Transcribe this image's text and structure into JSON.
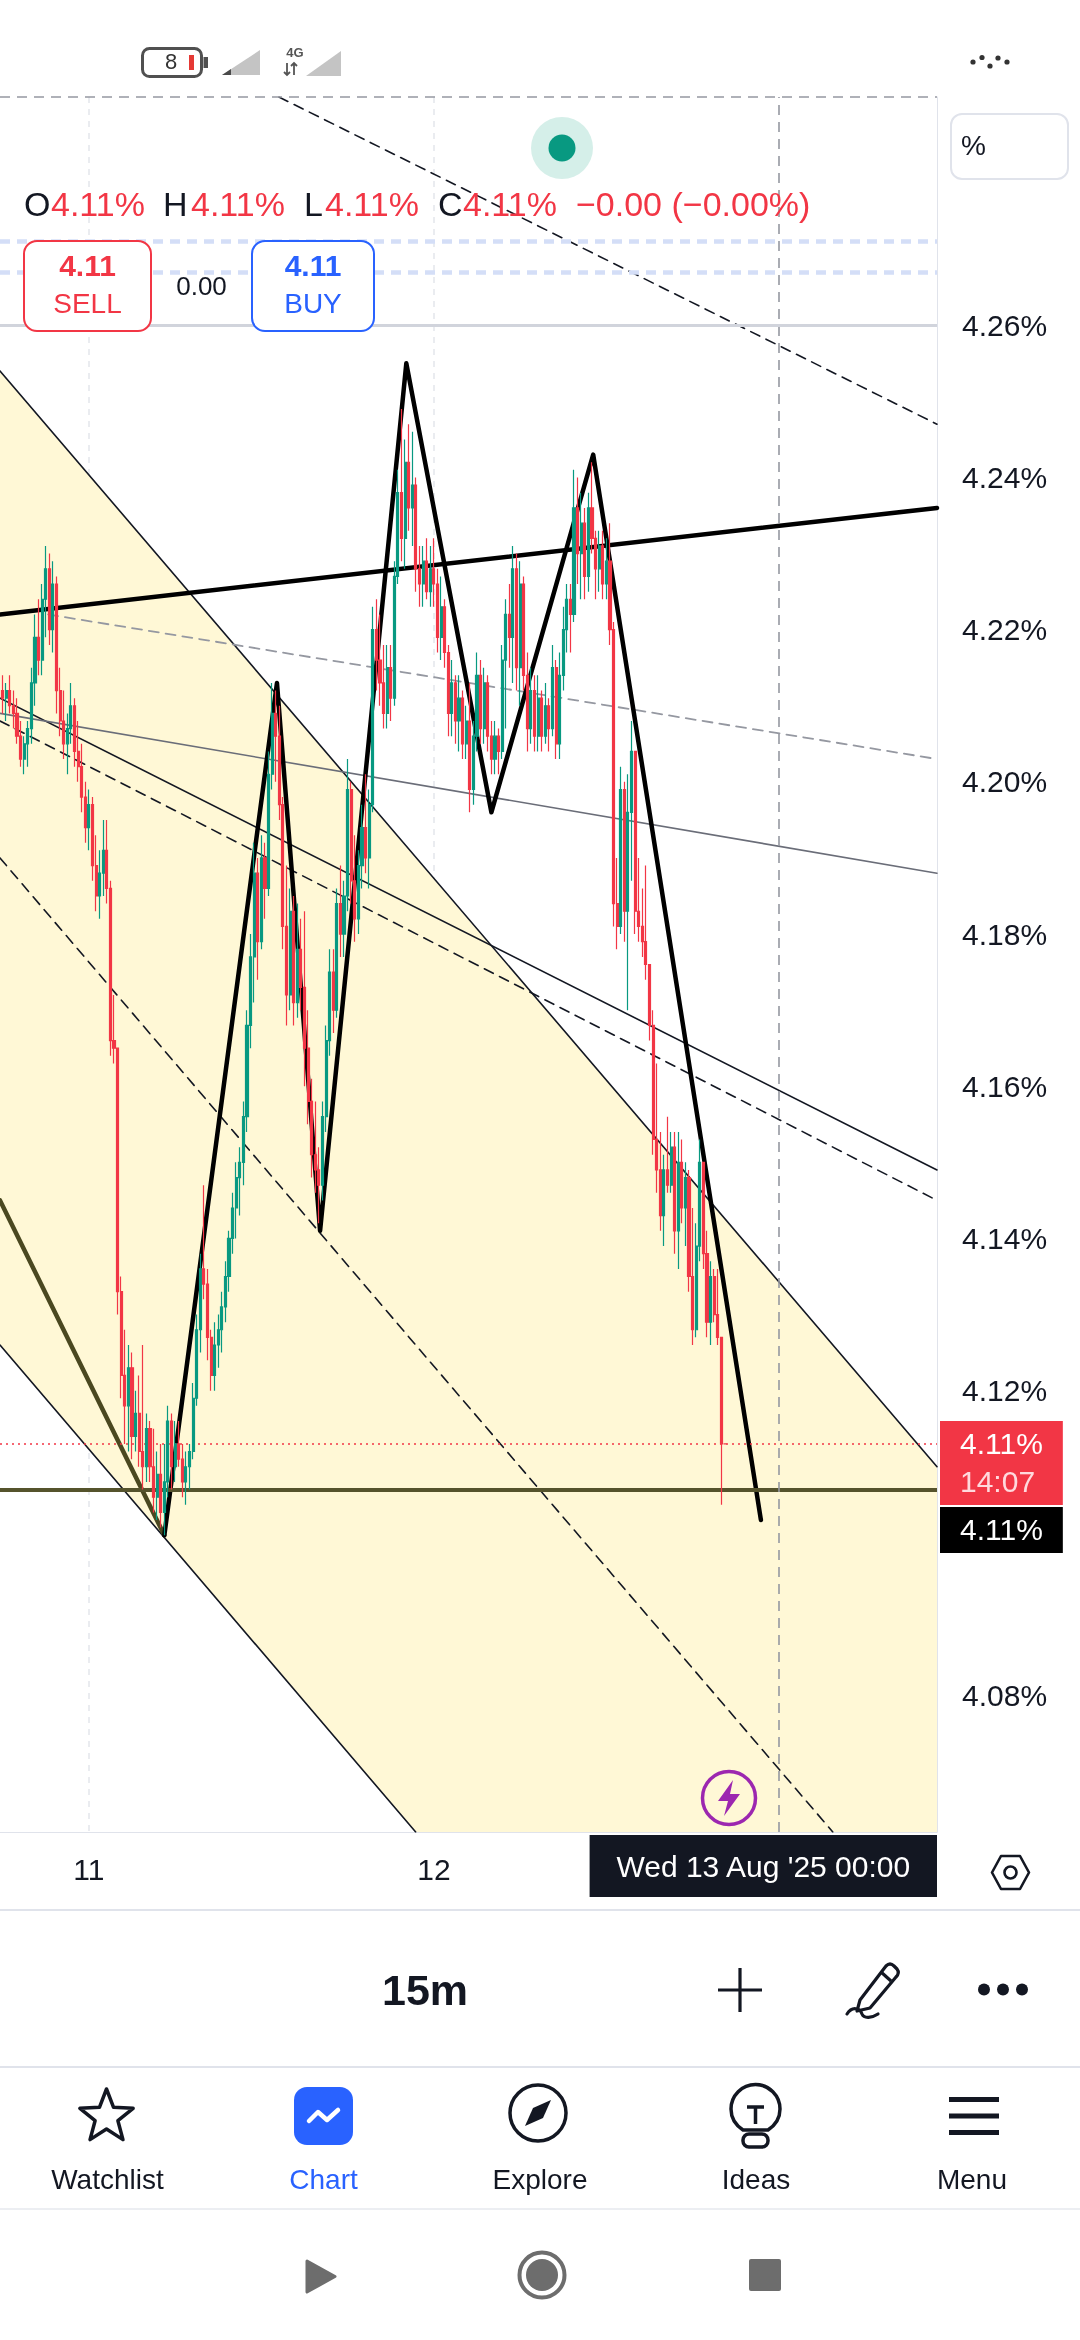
{
  "chart_data": {
    "type": "candlestick",
    "xlim": [
      "2025-08-10T17:49",
      "2025-08-13T11:00"
    ],
    "ylim": [
      4.062,
      4.29
    ],
    "xticks": [
      {
        "value": "2025-08-11",
        "label": "11"
      },
      {
        "value": "2025-08-12",
        "label": "12"
      }
    ],
    "yticks": [
      {
        "value": 4.08,
        "label": "4.08%"
      },
      {
        "value": 4.12,
        "label": "4.12%"
      },
      {
        "value": 4.14,
        "label": "4.14%"
      },
      {
        "value": 4.16,
        "label": "4.16%"
      },
      {
        "value": 4.18,
        "label": "4.18%"
      },
      {
        "value": 4.2,
        "label": "4.20%"
      },
      {
        "value": 4.22,
        "label": "4.22%"
      },
      {
        "value": 4.24,
        "label": "4.24%"
      },
      {
        "value": 4.26,
        "label": "4.26%"
      }
    ],
    "grid": "x",
    "series": [
      {
        "type": "candlestick",
        "x": [
          "2025-08-10T18:00",
          "2025-08-10T18:15",
          "2025-08-10T18:30",
          "2025-08-10T18:45",
          "2025-08-10T19:00",
          "2025-08-10T19:15",
          "2025-08-10T19:30",
          "2025-08-10T19:45",
          "2025-08-10T20:00",
          "2025-08-10T20:15",
          "2025-08-10T20:30",
          "2025-08-10T20:45",
          "2025-08-10T21:00",
          "2025-08-10T21:15",
          "2025-08-10T21:30",
          "2025-08-10T21:45",
          "2025-08-10T22:00",
          "2025-08-10T22:15",
          "2025-08-10T22:30",
          "2025-08-10T22:45",
          "2025-08-10T23:00",
          "2025-08-10T23:15",
          "2025-08-10T23:30",
          "2025-08-10T23:45",
          "2025-08-11T00:00",
          "2025-08-11T00:15",
          "2025-08-11T00:30",
          "2025-08-11T00:45",
          "2025-08-11T01:00",
          "2025-08-11T01:15",
          "2025-08-11T01:30",
          "2025-08-11T01:45",
          "2025-08-11T02:00",
          "2025-08-11T02:15",
          "2025-08-11T02:30",
          "2025-08-11T02:45",
          "2025-08-11T03:00",
          "2025-08-11T03:15",
          "2025-08-11T03:30",
          "2025-08-11T03:45",
          "2025-08-11T04:00",
          "2025-08-11T04:15",
          "2025-08-11T04:30",
          "2025-08-11T04:45",
          "2025-08-11T05:00",
          "2025-08-11T05:15",
          "2025-08-11T05:30",
          "2025-08-11T05:45",
          "2025-08-11T06:00",
          "2025-08-11T06:15",
          "2025-08-11T06:30",
          "2025-08-11T06:45",
          "2025-08-11T07:00",
          "2025-08-11T07:15",
          "2025-08-11T07:30",
          "2025-08-11T07:45",
          "2025-08-11T08:00",
          "2025-08-11T08:15",
          "2025-08-11T08:30",
          "2025-08-11T08:45",
          "2025-08-11T09:00",
          "2025-08-11T09:15",
          "2025-08-11T09:30",
          "2025-08-11T09:45",
          "2025-08-11T10:00",
          "2025-08-11T10:15",
          "2025-08-11T10:30",
          "2025-08-11T10:45",
          "2025-08-11T11:00",
          "2025-08-11T11:15",
          "2025-08-11T11:30",
          "2025-08-11T11:45",
          "2025-08-11T12:00",
          "2025-08-11T12:15",
          "2025-08-11T12:30",
          "2025-08-11T12:45",
          "2025-08-11T13:00",
          "2025-08-11T13:15",
          "2025-08-11T13:30",
          "2025-08-11T13:45",
          "2025-08-11T14:00",
          "2025-08-11T14:15",
          "2025-08-11T14:30",
          "2025-08-11T14:45",
          "2025-08-11T15:00",
          "2025-08-11T15:15",
          "2025-08-11T15:30",
          "2025-08-11T15:45",
          "2025-08-11T16:00",
          "2025-08-11T16:15",
          "2025-08-11T16:30",
          "2025-08-11T16:45",
          "2025-08-11T17:00",
          "2025-08-11T17:15",
          "2025-08-11T17:30",
          "2025-08-11T17:45",
          "2025-08-11T18:00",
          "2025-08-11T18:15",
          "2025-08-11T18:30",
          "2025-08-11T18:45",
          "2025-08-11T19:00",
          "2025-08-11T19:15",
          "2025-08-11T19:30",
          "2025-08-11T19:45",
          "2025-08-11T20:00",
          "2025-08-11T20:15",
          "2025-08-11T20:30",
          "2025-08-11T20:45",
          "2025-08-11T21:00",
          "2025-08-11T21:15",
          "2025-08-11T21:30",
          "2025-08-11T21:45",
          "2025-08-11T22:00",
          "2025-08-11T22:15",
          "2025-08-11T22:30",
          "2025-08-11T22:45",
          "2025-08-11T23:00",
          "2025-08-11T23:15",
          "2025-08-11T23:30",
          "2025-08-11T23:45",
          "2025-08-12T00:00",
          "2025-08-12T00:15",
          "2025-08-12T00:30",
          "2025-08-12T00:45",
          "2025-08-12T01:00",
          "2025-08-12T01:15",
          "2025-08-12T01:30",
          "2025-08-12T01:45",
          "2025-08-12T02:00",
          "2025-08-12T02:15",
          "2025-08-12T02:30",
          "2025-08-12T02:45",
          "2025-08-12T03:00",
          "2025-08-12T03:15",
          "2025-08-12T03:30",
          "2025-08-12T03:45",
          "2025-08-12T04:00",
          "2025-08-12T04:15",
          "2025-08-12T04:30",
          "2025-08-12T04:45",
          "2025-08-12T05:00",
          "2025-08-12T05:15",
          "2025-08-12T05:30",
          "2025-08-12T05:45",
          "2025-08-12T06:00",
          "2025-08-12T06:15",
          "2025-08-12T06:30",
          "2025-08-12T06:45",
          "2025-08-12T07:00",
          "2025-08-12T07:15",
          "2025-08-12T07:30",
          "2025-08-12T07:45",
          "2025-08-12T08:00",
          "2025-08-12T08:15",
          "2025-08-12T08:30",
          "2025-08-12T08:45",
          "2025-08-12T09:00",
          "2025-08-12T09:15",
          "2025-08-12T09:30",
          "2025-08-12T09:45",
          "2025-08-12T10:00",
          "2025-08-12T10:15",
          "2025-08-12T10:30",
          "2025-08-12T10:45",
          "2025-08-12T11:00",
          "2025-08-12T11:15",
          "2025-08-12T11:30",
          "2025-08-12T11:45",
          "2025-08-12T12:00",
          "2025-08-12T12:15",
          "2025-08-12T12:30",
          "2025-08-12T12:45",
          "2025-08-12T13:00",
          "2025-08-12T13:15",
          "2025-08-12T13:30",
          "2025-08-12T13:45",
          "2025-08-12T14:00",
          "2025-08-12T14:15",
          "2025-08-12T14:30",
          "2025-08-12T14:45",
          "2025-08-12T15:00",
          "2025-08-12T15:15",
          "2025-08-12T15:30",
          "2025-08-12T15:45",
          "2025-08-12T16:00",
          "2025-08-12T16:15",
          "2025-08-12T16:30",
          "2025-08-12T16:45",
          "2025-08-12T17:00",
          "2025-08-12T17:15",
          "2025-08-12T17:30",
          "2025-08-12T17:45",
          "2025-08-12T18:00",
          "2025-08-12T18:15",
          "2025-08-12T18:30",
          "2025-08-12T18:45",
          "2025-08-12T19:00",
          "2025-08-12T19:15",
          "2025-08-12T19:30",
          "2025-08-12T19:45",
          "2025-08-12T20:00",
          "2025-08-12T20:15"
        ],
        "ohlc": [
          [
            4.212,
            4.214,
            4.209,
            4.211
          ],
          [
            4.211,
            4.213,
            4.208,
            4.212
          ],
          [
            4.212,
            4.214,
            4.209,
            4.21
          ],
          [
            4.21,
            4.212,
            4.207,
            4.209
          ],
          [
            4.209,
            4.211,
            4.205,
            4.206
          ],
          [
            4.206,
            4.208,
            4.202,
            4.203
          ],
          [
            4.203,
            4.206,
            4.201,
            4.205
          ],
          [
            4.205,
            4.208,
            4.202,
            4.207
          ],
          [
            4.207,
            4.215,
            4.205,
            4.213
          ],
          [
            4.213,
            4.222,
            4.21,
            4.219
          ],
          [
            4.219,
            4.224,
            4.214,
            4.216
          ],
          [
            4.216,
            4.226,
            4.214,
            4.224
          ],
          [
            4.224,
            4.231,
            4.219,
            4.228
          ],
          [
            4.228,
            4.23,
            4.218,
            4.22
          ],
          [
            4.22,
            4.229,
            4.217,
            4.226
          ],
          [
            4.226,
            4.227,
            4.209,
            4.212
          ],
          [
            4.212,
            4.215,
            4.206,
            4.208
          ],
          [
            4.208,
            4.212,
            4.203,
            4.205
          ],
          [
            4.205,
            4.209,
            4.201,
            4.207
          ],
          [
            4.207,
            4.213,
            4.205,
            4.21
          ],
          [
            4.21,
            4.211,
            4.202,
            4.204
          ],
          [
            4.204,
            4.208,
            4.2,
            4.202
          ],
          [
            4.202,
            4.205,
            4.196,
            4.198
          ],
          [
            4.198,
            4.2,
            4.192,
            4.194
          ],
          [
            4.194,
            4.199,
            4.191,
            4.197
          ],
          [
            4.197,
            4.198,
            4.187,
            4.189
          ],
          [
            4.189,
            4.193,
            4.183,
            4.185
          ],
          [
            4.185,
            4.191,
            4.182,
            4.188
          ],
          [
            4.188,
            4.195,
            4.185,
            4.191
          ],
          [
            4.191,
            4.195,
            4.184,
            4.186
          ],
          [
            4.186,
            4.187,
            4.164,
            4.166
          ],
          [
            4.166,
            4.172,
            4.163,
            4.165
          ],
          [
            4.165,
            4.165,
            4.13,
            4.133
          ],
          [
            4.133,
            4.135,
            4.119,
            4.122
          ],
          [
            4.122,
            4.128,
            4.113,
            4.118
          ],
          [
            4.118,
            4.126,
            4.112,
            4.123
          ],
          [
            4.123,
            4.125,
            4.111,
            4.114
          ],
          [
            4.114,
            4.12,
            4.112,
            4.117
          ],
          [
            4.117,
            4.122,
            4.11,
            4.112
          ],
          [
            4.112,
            4.126,
            4.107,
            4.11
          ],
          [
            4.11,
            4.117,
            4.108,
            4.115
          ],
          [
            4.115,
            4.116,
            4.108,
            4.11
          ],
          [
            4.11,
            4.115,
            4.104,
            4.106
          ],
          [
            4.106,
            4.112,
            4.103,
            4.109
          ],
          [
            4.109,
            4.113,
            4.102,
            4.104
          ],
          [
            4.104,
            4.113,
            4.101,
            4.108
          ],
          [
            4.108,
            4.118,
            4.106,
            4.116
          ],
          [
            4.116,
            4.117,
            4.107,
            4.11
          ],
          [
            4.11,
            4.116,
            4.108,
            4.113
          ],
          [
            4.113,
            4.116,
            4.11,
            4.111
          ],
          [
            4.111,
            4.113,
            4.106,
            4.108
          ],
          [
            4.108,
            4.112,
            4.105,
            4.11
          ],
          [
            4.11,
            4.113,
            4.107,
            4.112
          ],
          [
            4.112,
            4.121,
            4.111,
            4.119
          ],
          [
            4.119,
            4.13,
            4.118,
            4.128
          ],
          [
            4.128,
            4.138,
            4.125,
            4.136
          ],
          [
            4.136,
            4.147,
            4.132,
            4.134
          ],
          [
            4.134,
            4.136,
            4.124,
            4.127
          ],
          [
            4.127,
            4.128,
            4.12,
            4.122
          ],
          [
            4.122,
            4.129,
            4.12,
            4.126
          ],
          [
            4.126,
            4.13,
            4.123,
            4.128
          ],
          [
            4.128,
            4.133,
            4.125,
            4.131
          ],
          [
            4.131,
            4.137,
            4.129,
            4.135
          ],
          [
            4.135,
            4.141,
            4.133,
            4.14
          ],
          [
            4.14,
            4.146,
            4.138,
            4.144
          ],
          [
            4.144,
            4.15,
            4.14,
            4.148
          ],
          [
            4.148,
            4.152,
            4.143,
            4.15
          ],
          [
            4.15,
            4.158,
            4.147,
            4.156
          ],
          [
            4.156,
            4.17,
            4.154,
            4.168
          ],
          [
            4.168,
            4.18,
            4.165,
            4.177
          ],
          [
            4.177,
            4.192,
            4.171,
            4.188
          ],
          [
            4.188,
            4.19,
            4.174,
            4.179
          ],
          [
            4.179,
            4.193,
            4.178,
            4.19
          ],
          [
            4.19,
            4.192,
            4.182,
            4.186
          ],
          [
            4.186,
            4.204,
            4.185,
            4.201
          ],
          [
            4.201,
            4.213,
            4.199,
            4.209
          ],
          [
            4.209,
            4.212,
            4.2,
            4.206
          ],
          [
            4.206,
            4.21,
            4.195,
            4.197
          ],
          [
            4.197,
            4.198,
            4.178,
            4.181
          ],
          [
            4.181,
            4.189,
            4.168,
            4.172
          ],
          [
            4.172,
            4.186,
            4.17,
            4.183
          ],
          [
            4.183,
            4.185,
            4.168,
            4.171
          ],
          [
            4.171,
            4.184,
            4.169,
            4.178
          ],
          [
            4.178,
            4.182,
            4.17,
            4.173
          ],
          [
            4.173,
            4.183,
            4.16,
            4.165
          ],
          [
            4.165,
            4.17,
            4.155,
            4.158
          ],
          [
            4.158,
            4.161,
            4.148,
            4.151
          ],
          [
            4.151,
            4.158,
            4.146,
            4.149
          ],
          [
            4.149,
            4.152,
            4.142,
            4.147
          ],
          [
            4.147,
            4.158,
            4.145,
            4.156
          ],
          [
            4.156,
            4.168,
            4.154,
            4.166
          ],
          [
            4.166,
            4.178,
            4.164,
            4.175
          ],
          [
            4.175,
            4.178,
            4.167,
            4.17
          ],
          [
            4.17,
            4.186,
            4.169,
            4.184
          ],
          [
            4.184,
            4.189,
            4.177,
            4.18
          ],
          [
            4.18,
            4.187,
            4.177,
            4.185
          ],
          [
            4.185,
            4.203,
            4.183,
            4.199
          ],
          [
            4.199,
            4.2,
            4.184,
            4.187
          ],
          [
            4.187,
            4.193,
            4.179,
            4.182
          ],
          [
            4.182,
            4.191,
            4.18,
            4.189
          ],
          [
            4.189,
            4.197,
            4.186,
            4.194
          ],
          [
            4.194,
            4.201,
            4.188,
            4.19
          ],
          [
            4.19,
            4.199,
            4.186,
            4.197
          ],
          [
            4.197,
            4.223,
            4.196,
            4.22
          ],
          [
            4.22,
            4.224,
            4.212,
            4.216
          ],
          [
            4.216,
            4.222,
            4.21,
            4.213
          ],
          [
            4.213,
            4.218,
            4.207,
            4.209
          ],
          [
            4.209,
            4.218,
            4.207,
            4.215
          ],
          [
            4.215,
            4.218,
            4.208,
            4.211
          ],
          [
            4.211,
            4.229,
            4.21,
            4.227
          ],
          [
            4.227,
            4.241,
            4.226,
            4.238
          ],
          [
            4.238,
            4.249,
            4.229,
            4.232
          ],
          [
            4.232,
            4.245,
            4.228,
            4.242
          ],
          [
            4.242,
            4.247,
            4.233,
            4.236
          ],
          [
            4.236,
            4.246,
            4.231,
            4.239
          ],
          [
            4.239,
            4.24,
            4.225,
            4.228
          ],
          [
            4.228,
            4.231,
            4.223,
            4.226
          ],
          [
            4.226,
            4.231,
            4.223,
            4.229
          ],
          [
            4.229,
            4.232,
            4.224,
            4.225
          ],
          [
            4.225,
            4.231,
            4.223,
            4.228
          ],
          [
            4.228,
            4.232,
            4.223,
            4.226
          ],
          [
            4.226,
            4.228,
            4.217,
            4.219
          ],
          [
            4.219,
            4.227,
            4.216,
            4.223
          ],
          [
            4.223,
            4.224,
            4.215,
            4.217
          ],
          [
            4.217,
            4.218,
            4.206,
            4.209
          ],
          [
            4.209,
            4.216,
            4.206,
            4.213
          ],
          [
            4.213,
            4.214,
            4.205,
            4.208
          ],
          [
            4.208,
            4.214,
            4.204,
            4.211
          ],
          [
            4.211,
            4.212,
            4.203,
            4.205
          ],
          [
            4.205,
            4.21,
            4.203,
            4.208
          ],
          [
            4.208,
            4.213,
            4.196,
            4.199
          ],
          [
            4.199,
            4.208,
            4.197,
            4.206
          ],
          [
            4.206,
            4.217,
            4.204,
            4.214
          ],
          [
            4.214,
            4.216,
            4.205,
            4.207
          ],
          [
            4.207,
            4.215,
            4.205,
            4.213
          ],
          [
            4.213,
            4.214,
            4.204,
            4.206
          ],
          [
            4.206,
            4.208,
            4.201,
            4.203
          ],
          [
            4.203,
            4.208,
            4.201,
            4.206
          ],
          [
            4.206,
            4.207,
            4.201,
            4.204
          ],
          [
            4.204,
            4.218,
            4.203,
            4.216
          ],
          [
            4.216,
            4.224,
            4.207,
            4.222
          ],
          [
            4.222,
            4.226,
            4.215,
            4.219
          ],
          [
            4.219,
            4.231,
            4.213,
            4.228
          ],
          [
            4.228,
            4.23,
            4.212,
            4.215
          ],
          [
            4.215,
            4.229,
            4.21,
            4.226
          ],
          [
            4.226,
            4.227,
            4.212,
            4.214
          ],
          [
            4.214,
            4.217,
            4.204,
            4.207
          ],
          [
            4.207,
            4.215,
            4.205,
            4.212
          ],
          [
            4.212,
            4.214,
            4.204,
            4.206
          ],
          [
            4.206,
            4.214,
            4.204,
            4.211
          ],
          [
            4.211,
            4.212,
            4.204,
            4.206
          ],
          [
            4.206,
            4.213,
            4.205,
            4.21
          ],
          [
            4.21,
            4.211,
            4.204,
            4.207
          ],
          [
            4.207,
            4.218,
            4.206,
            4.215
          ],
          [
            4.215,
            4.216,
            4.203,
            4.205
          ],
          [
            4.205,
            4.217,
            4.203,
            4.214
          ],
          [
            4.214,
            4.223,
            4.212,
            4.22
          ],
          [
            4.22,
            4.226,
            4.217,
            4.224
          ],
          [
            4.224,
            4.226,
            4.217,
            4.222
          ],
          [
            4.222,
            4.241,
            4.221,
            4.236
          ],
          [
            4.236,
            4.24,
            4.226,
            4.23
          ],
          [
            4.23,
            4.238,
            4.224,
            4.234
          ],
          [
            4.234,
            4.236,
            4.224,
            4.227
          ],
          [
            4.227,
            4.238,
            4.225,
            4.236
          ],
          [
            4.236,
            4.242,
            4.23,
            4.232
          ],
          [
            4.232,
            4.233,
            4.224,
            4.228
          ],
          [
            4.228,
            4.233,
            4.225,
            4.231
          ],
          [
            4.231,
            4.233,
            4.224,
            4.226
          ],
          [
            4.226,
            4.232,
            4.224,
            4.229
          ],
          [
            4.229,
            4.234,
            4.218,
            4.22
          ],
          [
            4.22,
            4.221,
            4.181,
            4.184
          ],
          [
            4.184,
            4.19,
            4.178,
            4.181
          ],
          [
            4.181,
            4.202,
            4.18,
            4.199
          ],
          [
            4.199,
            4.2,
            4.179,
            4.183
          ],
          [
            4.183,
            4.201,
            4.17,
            4.196
          ],
          [
            4.196,
            4.208,
            4.187,
            4.204
          ],
          [
            4.204,
            4.204,
            4.18,
            4.183
          ],
          [
            4.183,
            4.19,
            4.179,
            4.181
          ],
          [
            4.181,
            4.186,
            4.177,
            4.179
          ],
          [
            4.179,
            4.189,
            4.174,
            4.176
          ],
          [
            4.176,
            4.176,
            4.166,
            4.168
          ],
          [
            4.168,
            4.17,
            4.151,
            4.153
          ],
          [
            4.153,
            4.163,
            4.146,
            4.149
          ],
          [
            4.149,
            4.154,
            4.141,
            4.143
          ],
          [
            4.143,
            4.151,
            4.139,
            4.149
          ],
          [
            4.149,
            4.156,
            4.146,
            4.147
          ],
          [
            4.147,
            4.154,
            4.146,
            4.152
          ],
          [
            4.152,
            4.154,
            4.138,
            4.141
          ],
          [
            4.141,
            4.154,
            4.136,
            4.15
          ],
          [
            4.15,
            4.153,
            4.142,
            4.144
          ],
          [
            4.144,
            4.15,
            4.139,
            4.148
          ],
          [
            4.148,
            4.149,
            4.133,
            4.135
          ],
          [
            4.135,
            4.144,
            4.126,
            4.128
          ],
          [
            4.128,
            4.142,
            4.127,
            4.139
          ],
          [
            4.139,
            4.153,
            4.137,
            4.15
          ],
          [
            4.15,
            4.15,
            4.136,
            4.138
          ],
          [
            4.138,
            4.141,
            4.127,
            4.129
          ],
          [
            4.129,
            4.137,
            4.126,
            4.135
          ],
          [
            4.135,
            4.136,
            4.129,
            4.13
          ],
          [
            4.13,
            4.136,
            4.126,
            4.127
          ],
          [
            4.127,
            4.127,
            4.105,
            4.113
          ],
          [
            4.113,
            4.113,
            4.113,
            4.113
          ]
        ],
        "colors": [
          "#f23645",
          "#089981",
          "#f23645",
          "#f23645",
          "#f23645",
          "#f23645",
          "#089981",
          "#089981",
          "#089981",
          "#089981",
          "#f23645",
          "#089981",
          "#089981",
          "#f23645",
          "#089981",
          "#f23645",
          "#f23645",
          "#f23645",
          "#089981",
          "#089981",
          "#f23645",
          "#f23645",
          "#f23645",
          "#f23645",
          "#089981",
          "#f23645",
          "#f23645",
          "#089981",
          "#089981",
          "#f23645",
          "#f23645",
          "#f23645",
          "#f23645",
          "#f23645",
          "#f23645",
          "#089981",
          "#f23645",
          "#089981",
          "#f23645",
          "#f23645",
          "#089981",
          "#f23645",
          "#f23645",
          "#089981",
          "#f23645",
          "#089981",
          "#089981",
          "#f23645",
          "#089981",
          "#f23645",
          "#f23645",
          "#089981",
          "#089981",
          "#089981",
          "#089981",
          "#089981",
          "#f23645",
          "#f23645",
          "#f23645",
          "#089981",
          "#089981",
          "#089981",
          "#089981",
          "#089981",
          "#089981",
          "#089981",
          "#089981",
          "#089981",
          "#089981",
          "#089981",
          "#089981",
          "#f23645",
          "#089981",
          "#f23645",
          "#089981",
          "#089981",
          "#f23645",
          "#f23645",
          "#f23645",
          "#f23645",
          "#089981",
          "#f23645",
          "#089981",
          "#f23645",
          "#f23645",
          "#f23645",
          "#f23645",
          "#f23645",
          "#f23645",
          "#089981",
          "#089981",
          "#089981",
          "#f23645",
          "#089981",
          "#f23645",
          "#089981",
          "#089981",
          "#f23645",
          "#f23645",
          "#089981",
          "#089981",
          "#f23645",
          "#089981",
          "#089981",
          "#f23645",
          "#f23645",
          "#f23645",
          "#089981",
          "#f23645",
          "#089981",
          "#089981",
          "#f23645",
          "#089981",
          "#f23645",
          "#089981",
          "#f23645",
          "#f23645",
          "#089981",
          "#f23645",
          "#089981",
          "#f23645",
          "#f23645",
          "#089981",
          "#f23645",
          "#f23645",
          "#089981",
          "#f23645",
          "#089981",
          "#f23645",
          "#089981",
          "#f23645",
          "#089981",
          "#089981",
          "#f23645",
          "#089981",
          "#f23645",
          "#f23645",
          "#089981",
          "#f23645",
          "#089981",
          "#089981",
          "#f23645",
          "#089981",
          "#f23645",
          "#089981",
          "#f23645",
          "#f23645",
          "#089981",
          "#f23645",
          "#089981",
          "#f23645",
          "#089981",
          "#f23645",
          "#089981",
          "#f23645",
          "#089981",
          "#089981",
          "#089981",
          "#f23645",
          "#089981",
          "#f23645",
          "#089981",
          "#f23645",
          "#089981",
          "#f23645",
          "#f23645",
          "#089981",
          "#f23645",
          "#089981",
          "#f23645",
          "#f23645",
          "#f23645",
          "#089981",
          "#f23645",
          "#089981",
          "#089981",
          "#f23645",
          "#f23645",
          "#f23645",
          "#f23645",
          "#f23645",
          "#f23645",
          "#f23645",
          "#f23645",
          "#089981",
          "#f23645",
          "#089981",
          "#f23645",
          "#089981",
          "#f23645",
          "#089981",
          "#f23645",
          "#f23645",
          "#089981",
          "#089981",
          "#f23645",
          "#f23645",
          "#089981",
          "#f23645",
          "#f23645",
          "#f23645",
          "#f23645"
        ]
      },
      {
        "type": "line",
        "color": "#131722",
        "line_style": "dashed",
        "x": [
          "2025-08-10T17:49",
          "2025-08-11T22:44",
          "2025-08-13T03:45",
          "2025-08-13T11:00"
        ],
        "values": [
          4.19,
          4.126,
          4.062,
          null
        ],
        "upper": [
          4.254,
          4.19,
          4.126,
          4.11
        ],
        "lower": [
          4.126,
          4.062,
          4.062,
          4.062
        ]
      },
      {
        "type": "line",
        "color": "#131722",
        "x": [
          "2025-08-10T17:49",
          "2025-08-13T11:00"
        ],
        "values": [
          4.254,
          4.11
        ]
      },
      {
        "type": "line",
        "color": "#131722",
        "x": [
          "2025-08-10T17:49",
          "2025-08-11T22:44"
        ],
        "values": [
          4.126,
          4.062
        ]
      },
      {
        "type": "line",
        "color": "#131722",
        "x": [
          "2025-08-10T17:49",
          "2025-08-13T11:00"
        ],
        "values": [
          4.211,
          4.149
        ]
      },
      {
        "type": "line",
        "color": "#131722",
        "line_style": "dashed",
        "x": [
          "2025-08-10T17:49",
          "2025-08-13T11:00"
        ],
        "values": [
          4.208,
          4.145
        ]
      },
      {
        "type": "line",
        "color": "#6a6d78",
        "x": [
          "2025-08-10T17:49",
          "2025-08-13T11:00"
        ],
        "values": [
          4.209,
          4.188
        ]
      },
      {
        "type": "line",
        "color": "#9598a1",
        "line_style": "dashed",
        "x": [
          "2025-08-10T21:10",
          "2025-08-13T11:00"
        ],
        "values": [
          4.222,
          4.203
        ]
      },
      {
        "type": "line",
        "color": "#131722",
        "line_style": "dashed",
        "x": [
          "2025-08-11T13:13",
          "2025-08-13T11:00"
        ],
        "values": [
          4.29,
          4.247
        ]
      },
      {
        "type": "line",
        "color": "#000000",
        "x": [
          "2025-08-10T17:49",
          "2025-08-13T11:00"
        ],
        "values": [
          4.222,
          4.236
        ]
      },
      {
        "type": "line",
        "color": "#4a4820",
        "x": [
          "2025-08-10T17:49",
          "2025-08-11T05:15"
        ],
        "values": [
          4.145,
          4.101
        ]
      },
      {
        "type": "line",
        "color": "#000000",
        "x": [
          "2025-08-11T05:15",
          "2025-08-11T13:05",
          "2025-08-11T16:05",
          "2025-08-11T22:05",
          "2025-08-12T04:00",
          "2025-08-12T11:05",
          "2025-08-12T22:45"
        ],
        "values": [
          4.101,
          4.213,
          4.141,
          4.255,
          4.196,
          4.243,
          4.103
        ]
      }
    ],
    "ref_lines": [
      {
        "axis": "y",
        "value": 4.107,
        "label": "4.11%",
        "color": "#55532c"
      },
      {
        "axis": "y",
        "value": 4.113,
        "label": "4.11%\n14:07",
        "color": "#f23645",
        "line_style": "dotted"
      },
      {
        "axis": "x",
        "value": "2025-08-13T00:00",
        "label": "Wed 13 Aug '25 00:00",
        "color": "#9598a1",
        "line_style": "dashed"
      },
      {
        "axis": "y",
        "value": 4.29,
        "color": "#9598a1",
        "line_style": "dashed"
      },
      {
        "axis": "y",
        "value": 4.271,
        "color": "#d4def7",
        "line_style": "dashed"
      },
      {
        "axis": "y",
        "value": 4.267,
        "color": "#d4def7",
        "line_style": "dashed"
      },
      {
        "axis": "y",
        "value": 4.26,
        "color": "#d1d4dc"
      }
    ],
    "annotations": [
      "8",
      "4G",
      "%",
      "O",
      "4.11%",
      "H",
      "4.11%",
      "L",
      "4.11%",
      "C",
      "4.11%",
      "−0.00 (−0.00%)",
      "4.11",
      "SELL",
      "0.00",
      "4.11",
      "BUY",
      "15m",
      "Watchlist",
      "Chart",
      "Explore",
      "Ideas",
      "Menu"
    ]
  }
}
